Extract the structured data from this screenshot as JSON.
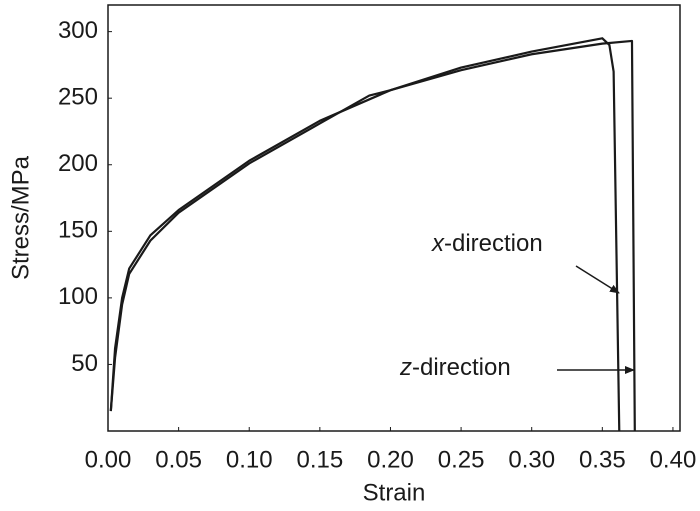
{
  "chart_data": {
    "type": "line",
    "x_label": "Strain",
    "y_label": "Stress/MPa",
    "xlim": [
      0,
      0.405
    ],
    "ylim": [
      0,
      320
    ],
    "xticks": [
      {
        "value": 0,
        "label": "0.00"
      },
      {
        "value": 0.05,
        "label": "0.05"
      },
      {
        "value": 0.1,
        "label": "0.10"
      },
      {
        "value": 0.15,
        "label": "0.15"
      },
      {
        "value": 0.2,
        "label": "0.20"
      },
      {
        "value": 0.25,
        "label": "0.25"
      },
      {
        "value": 0.3,
        "label": "0.30"
      },
      {
        "value": 0.35,
        "label": "0.35"
      },
      {
        "value": 0.4,
        "label": "0.40"
      }
    ],
    "yticks": [
      50,
      100,
      150,
      200,
      250,
      300
    ],
    "series": [
      {
        "name": "x-direction",
        "color": "#1a1a1a",
        "x": [
          0.002,
          0.005,
          0.01,
          0.015,
          0.03,
          0.05,
          0.1,
          0.15,
          0.2,
          0.25,
          0.3,
          0.35,
          0.355,
          0.358,
          0.362
        ],
        "values": [
          15,
          62,
          100,
          122,
          147,
          166,
          203,
          233,
          256,
          273,
          285,
          295,
          290,
          270,
          0
        ]
      },
      {
        "name": "z-direction",
        "color": "#1a1a1a",
        "x": [
          0.002,
          0.005,
          0.01,
          0.015,
          0.03,
          0.05,
          0.1,
          0.15,
          0.185,
          0.2,
          0.25,
          0.3,
          0.35,
          0.371,
          0.373
        ],
        "values": [
          15,
          55,
          95,
          118,
          143,
          164,
          201,
          231,
          252,
          256,
          271,
          283,
          291,
          293,
          0
        ]
      }
    ]
  }
}
